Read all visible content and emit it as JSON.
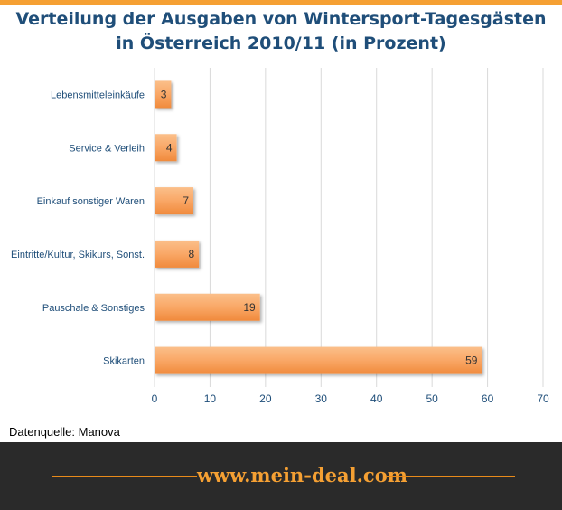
{
  "chart_data": {
    "type": "bar",
    "orientation": "horizontal",
    "title": "Verteilung der Ausgaben von Wintersport-Tagesgästen",
    "subtitle": "in Österreich 2010/11 (in Prozent)",
    "categories": [
      "Lebensmitteleinkäufe",
      "Service & Verleih",
      "Einkauf sonstiger Waren",
      "Eintritte/Kultur, Skikurs, Sonst.",
      "Pauschale & Sonstiges",
      "Skikarten"
    ],
    "values": [
      3,
      4,
      7,
      8,
      19,
      59
    ],
    "xlim": [
      0,
      70
    ],
    "xticks": [
      0,
      10,
      20,
      30,
      40,
      50,
      60,
      70
    ],
    "grid": true,
    "bar_color": "#f9a766",
    "legend": "none"
  },
  "source": "Datenquelle: Manova",
  "footer": {
    "site": "www.mein-deal.com"
  },
  "colors": {
    "accent": "#f5a033",
    "title": "#1f4e79",
    "footer_bg": "#2a2a2a"
  }
}
